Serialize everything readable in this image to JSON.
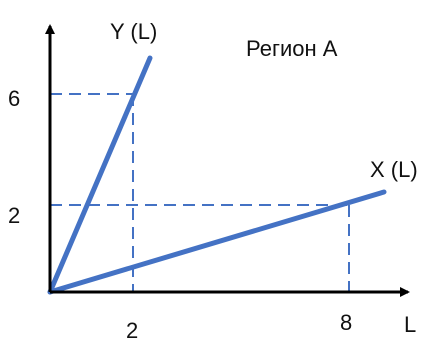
{
  "chart_data": {
    "type": "line",
    "title": "Регион А",
    "xlabel": "L",
    "ylabel": "",
    "series": [
      {
        "name": "Y (L)",
        "points": [
          [
            0,
            0
          ],
          [
            2,
            6
          ]
        ]
      },
      {
        "name": "X (L)",
        "points": [
          [
            0,
            0
          ],
          [
            8,
            2
          ]
        ]
      }
    ],
    "x_ticks": [
      2,
      8
    ],
    "y_ticks": [
      2,
      6
    ],
    "guide_lines": "dashed",
    "colors": {
      "series": "#4472C4",
      "guides": "#4472C4",
      "axes": "#000000",
      "text": "#111111"
    }
  }
}
